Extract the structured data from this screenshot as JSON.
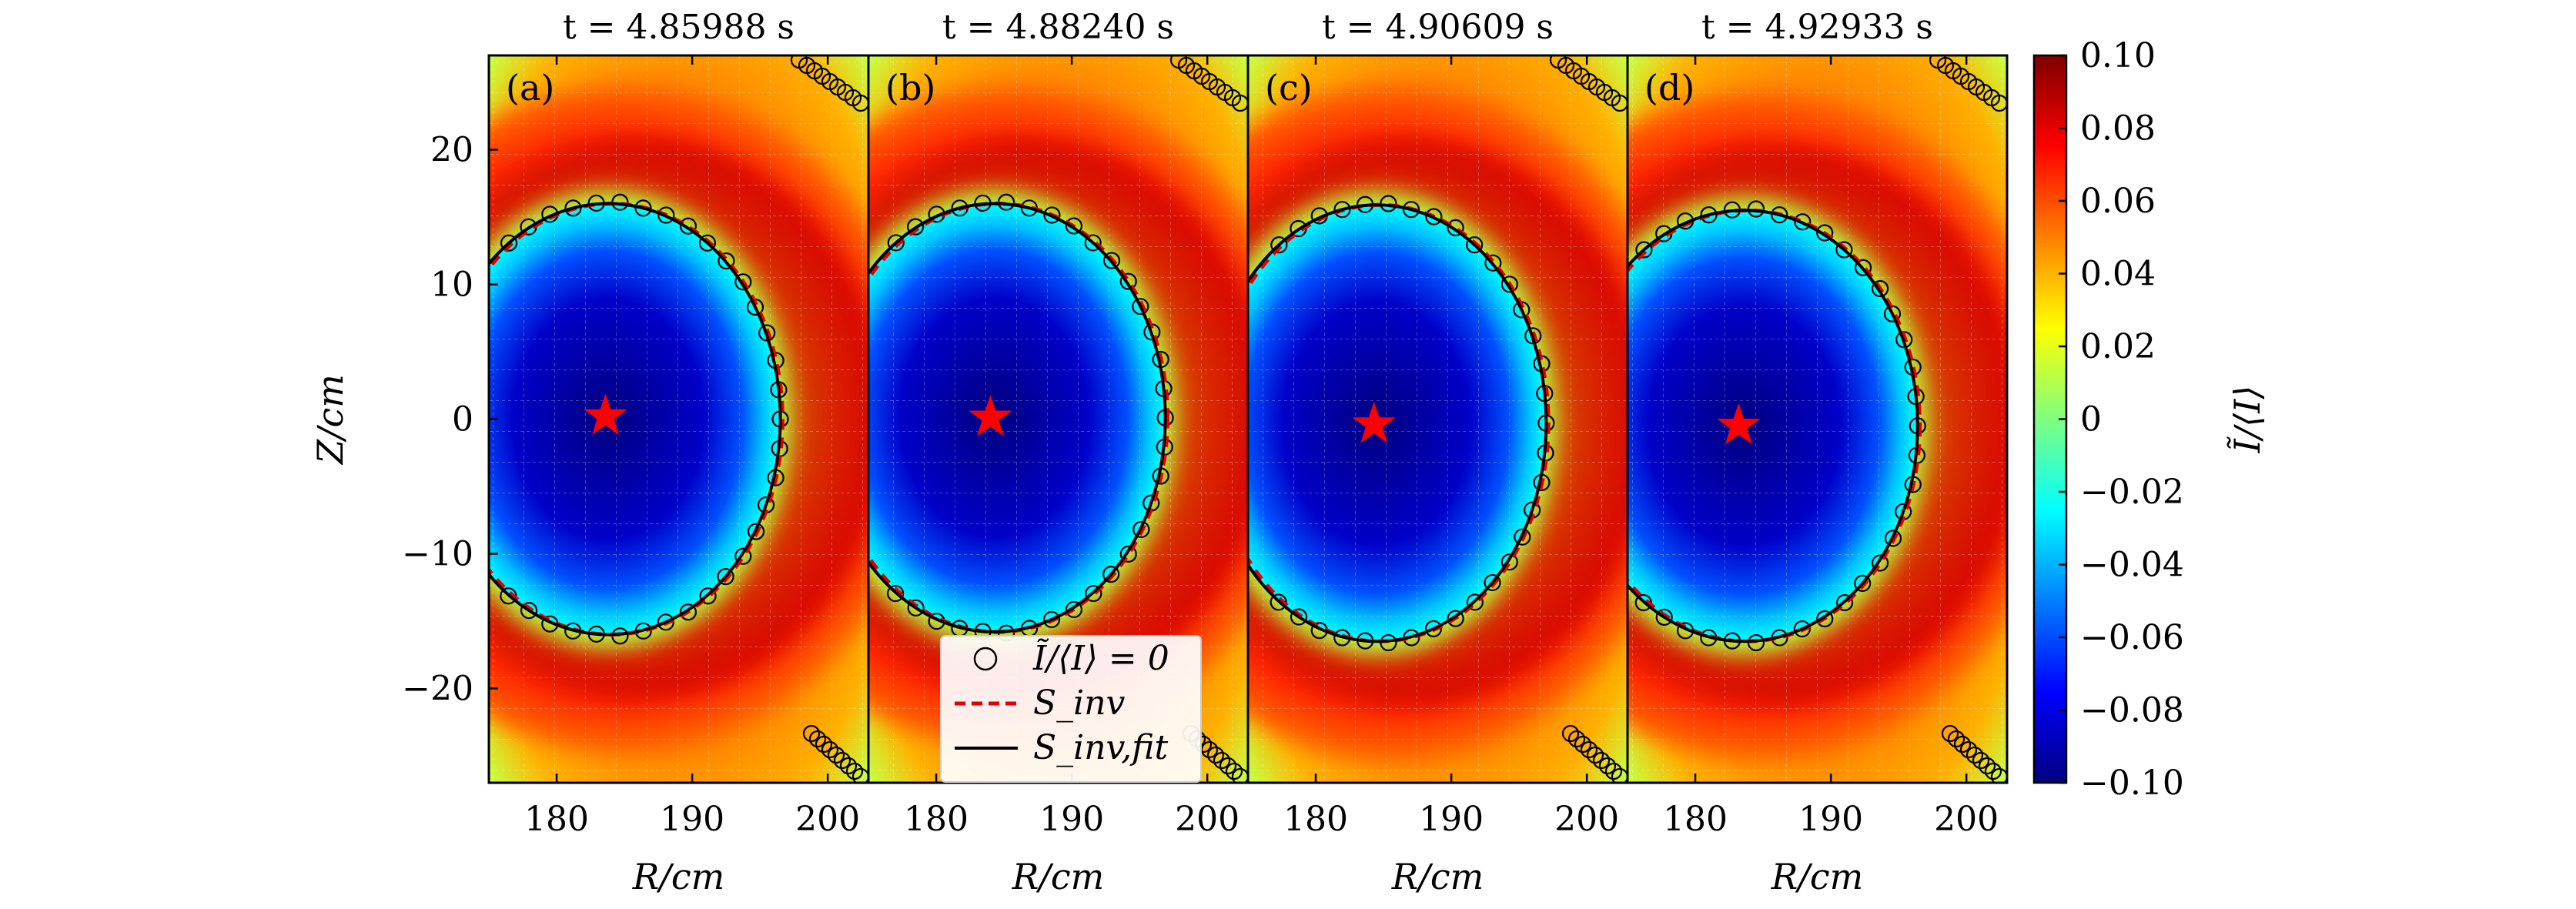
{
  "chart_data": {
    "type": "heatmap",
    "panels": [
      {
        "label": "(a)",
        "title": "t = 4.85988 s",
        "magnetic_axis": {
          "R": 183.6,
          "Z": 0.2
        },
        "s_inv_fit": {
          "R0": 183.8,
          "Z0": 0.0,
          "a_R": 12.7,
          "a_Z": 16.0
        }
      },
      {
        "label": "(b)",
        "title": "t = 4.88240 s",
        "magnetic_axis": {
          "R": 184.0,
          "Z": 0.1
        },
        "s_inv_fit": {
          "R0": 184.3,
          "Z0": 0.1,
          "a_R": 12.6,
          "a_Z": 15.9
        }
      },
      {
        "label": "(c)",
        "title": "t = 4.90609 s",
        "magnetic_axis": {
          "R": 184.3,
          "Z": -0.4
        },
        "s_inv_fit": {
          "R0": 184.5,
          "Z0": -0.3,
          "a_R": 12.5,
          "a_Z": 16.2
        }
      },
      {
        "label": "(d)",
        "title": "t = 4.92933 s",
        "magnetic_axis": {
          "R": 183.2,
          "Z": -0.5
        },
        "s_inv_fit": {
          "R0": 183.6,
          "Z0": -0.5,
          "a_R": 12.8,
          "a_Z": 16.0
        }
      }
    ],
    "xlabel": "R/cm",
    "ylabel": "Z/cm",
    "xlim": [
      175,
      203
    ],
    "ylim": [
      -27,
      27
    ],
    "xticks": [
      "180",
      "190",
      "200"
    ],
    "yticks": [
      "20",
      "10",
      "0",
      "−10",
      "−20"
    ],
    "colorbar": {
      "label": "Ĩ/⟨I⟩",
      "range": [
        -0.1,
        0.1
      ],
      "ticks": [
        "0.10",
        "0.08",
        "0.06",
        "0.04",
        "0.02",
        "0",
        "−0.02",
        "−0.04",
        "−0.06",
        "−0.08",
        "−0.10"
      ],
      "colormap": [
        "#00007f",
        "#0000ff",
        "#007fff",
        "#00ffff",
        "#7fff7f",
        "#ffff00",
        "#ff7f00",
        "#ff0000",
        "#7f0000"
      ]
    },
    "legend": {
      "placement": "lower-center",
      "entries": [
        {
          "label": "Ĩ/⟨I⟩ = 0",
          "marker": "circle"
        },
        {
          "label": "S_inv",
          "style": "red-dashed"
        },
        {
          "label": "S_inv,fit",
          "style": "black-solid"
        }
      ]
    },
    "grid": true
  }
}
